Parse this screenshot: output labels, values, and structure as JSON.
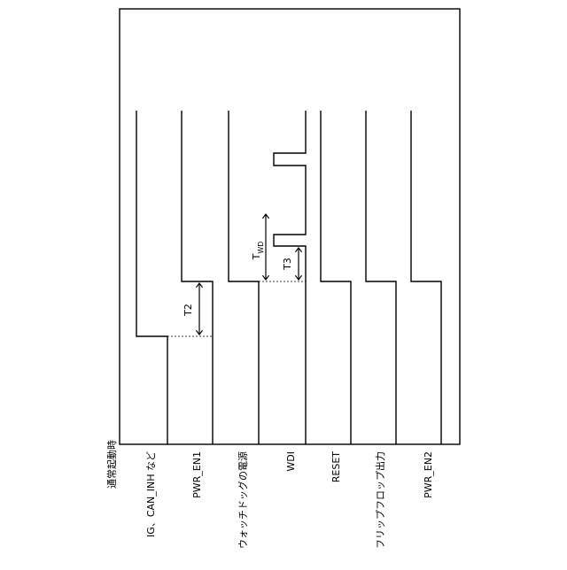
{
  "title": "通常起動時",
  "signals": [
    "IG、CAN_INH など",
    "PWR_EN1",
    "ウォッチドッグの電源",
    "WDI",
    "RESET",
    "フリップフロップ出力",
    "PWR_EN2"
  ],
  "annotations": {
    "t2": "T2",
    "twd_main": "T",
    "twd_sub": "WD",
    "t3": "T3"
  }
}
